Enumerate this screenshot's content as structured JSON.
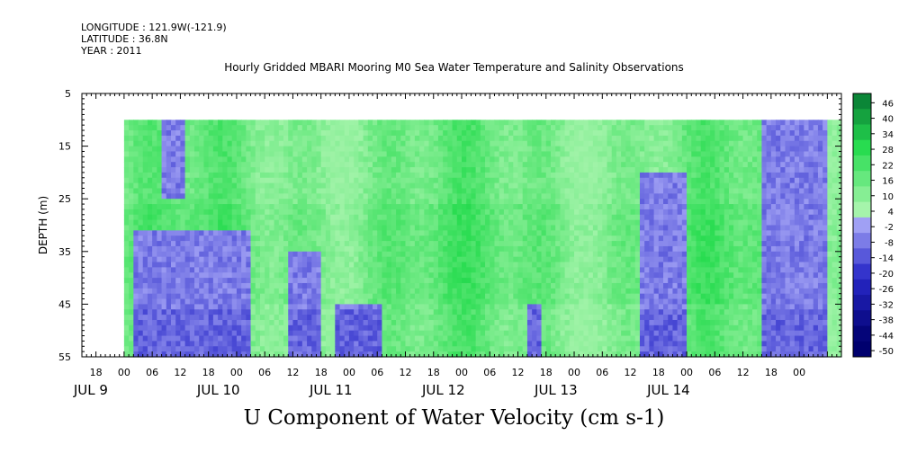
{
  "header": {
    "longitude": "LONGITUDE : 121.9W(-121.9)",
    "latitude": "LATITUDE : 36.8N",
    "year": "YEAR : 2011"
  },
  "title": "Hourly Gridded MBARI Mooring M0 Sea Water Temperature and Salinity Observations",
  "bottom_title": "U Component of Water Velocity (cm s-1)",
  "colors": {
    "strong_positive": "#006a2e",
    "positive": "#33dd55",
    "weak_positive": "#8ef29a",
    "weak_negative": "#b4b4ff",
    "negative": "#6f6fe6",
    "strong_negative": "#000080"
  },
  "chart_data": {
    "type": "heatmap",
    "ylabel": "DEPTH (m)",
    "ylim": [
      5,
      55
    ],
    "y_inverted": true,
    "y_ticks": [
      5,
      15,
      25,
      35,
      45,
      55
    ],
    "x_hour_ticks": [
      "18",
      "00",
      "06",
      "12",
      "18",
      "00",
      "06",
      "12",
      "18",
      "00",
      "06",
      "12",
      "18",
      "00",
      "06",
      "12",
      "18",
      "00",
      "06",
      "12",
      "18",
      "00",
      "06",
      "12",
      "18",
      "00"
    ],
    "x_day_labels": [
      "JUL  9",
      "JUL 10",
      "JUL 11",
      "JUL 12",
      "JUL 13",
      "JUL 14"
    ],
    "x_range_hours_from_jul9_00": [
      -9,
      153
    ],
    "data_extent": {
      "depth_range": [
        10,
        55
      ],
      "hour_range": [
        0,
        153
      ]
    },
    "colorbar": {
      "levels": [
        46,
        40,
        34,
        28,
        22,
        16,
        10,
        4,
        -2,
        -8,
        -14,
        -20,
        -26,
        -32,
        -38,
        -44,
        -50
      ],
      "range": [
        -50,
        50
      ]
    },
    "negative_regions": [
      {
        "hours": [
          8,
          13
        ],
        "depth": [
          10,
          25
        ]
      },
      {
        "hours": [
          2,
          27
        ],
        "depth": [
          31,
          55
        ]
      },
      {
        "hours": [
          35,
          42
        ],
        "depth": [
          35,
          55
        ]
      },
      {
        "hours": [
          45,
          55
        ],
        "depth": [
          45,
          55
        ]
      },
      {
        "hours": [
          86,
          89
        ],
        "depth": [
          45,
          55
        ]
      },
      {
        "hours": [
          110,
          120
        ],
        "depth": [
          20,
          55
        ]
      },
      {
        "hours": [
          136,
          150
        ],
        "depth": [
          10,
          55
        ]
      }
    ]
  }
}
